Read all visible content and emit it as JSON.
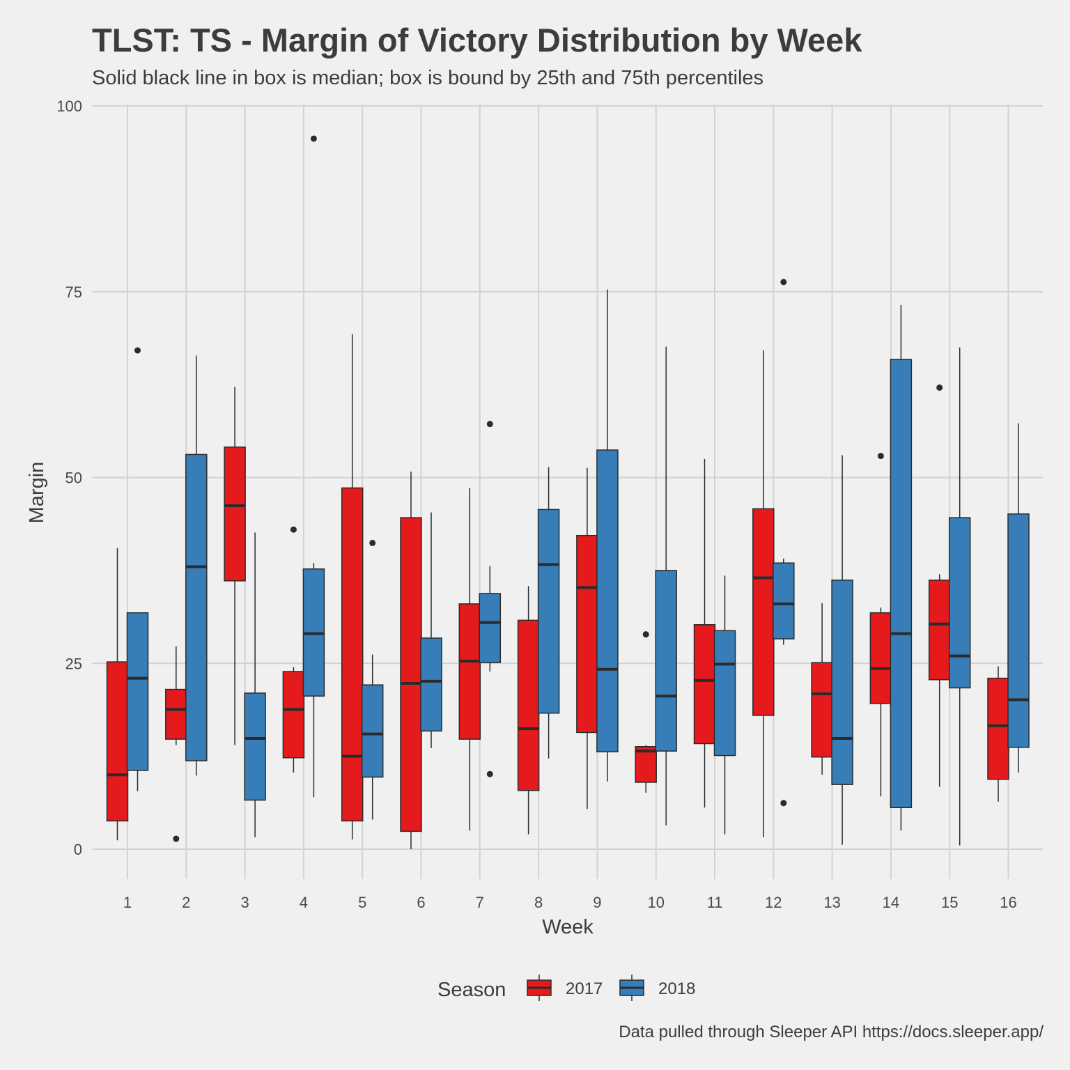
{
  "title": "TLST: TS - Margin of Victory Distribution by Week",
  "subtitle": "Solid black line in box is median; box is bound by 25th and 75th percentiles",
  "caption": "Data pulled through Sleeper API https://docs.sleeper.app/",
  "colors": {
    "2017": "#e41a1c",
    "2018": "#377eb8",
    "grid": "#d2d2d2",
    "background": "#f0f0f0",
    "outline": "#2b2b2b"
  },
  "chart_data": {
    "type": "boxplot",
    "title": "TLST: TS - Margin of Victory Distribution by Week",
    "subtitle": "Solid black line in box is median; box is bound by 25th and 75th percentiles",
    "xlabel": "Week",
    "ylabel": "Margin",
    "ylim": [
      -4,
      102
    ],
    "yticks": [
      0,
      25,
      50,
      75,
      100
    ],
    "categories": [
      "1",
      "2",
      "3",
      "4",
      "5",
      "6",
      "7",
      "8",
      "9",
      "10",
      "11",
      "12",
      "13",
      "14",
      "15",
      "16"
    ],
    "legend": {
      "title": "Season",
      "position": "bottom",
      "entries": [
        "2017",
        "2018"
      ]
    },
    "grid": true,
    "series": [
      {
        "name": "2017",
        "color": "#e41a1c",
        "boxes": [
          {
            "week": "1",
            "min": 1.2,
            "q1": 3.8,
            "median": 10,
            "q3": 25.2,
            "max": 40.5,
            "outliers": []
          },
          {
            "week": "2",
            "min": 14,
            "q1": 14.8,
            "median": 18.8,
            "q3": 21.5,
            "max": 27.3,
            "outliers": [
              1.4
            ]
          },
          {
            "week": "3",
            "min": 14,
            "q1": 36.1,
            "median": 46.2,
            "q3": 54.1,
            "max": 62.2,
            "outliers": []
          },
          {
            "week": "4",
            "min": 10.3,
            "q1": 12.3,
            "median": 18.8,
            "q3": 23.9,
            "max": 24.5,
            "outliers": [
              43
            ]
          },
          {
            "week": "5",
            "min": 1.3,
            "q1": 3.8,
            "median": 12.5,
            "q3": 48.6,
            "max": 69.3,
            "outliers": []
          },
          {
            "week": "6",
            "min": 0,
            "q1": 2.4,
            "median": 22.3,
            "q3": 44.6,
            "max": 50.8,
            "outliers": []
          },
          {
            "week": "7",
            "min": 2.5,
            "q1": 14.8,
            "median": 25.3,
            "q3": 33,
            "max": 48.6,
            "outliers": []
          },
          {
            "week": "8",
            "min": 2,
            "q1": 7.9,
            "median": 16.2,
            "q3": 30.8,
            "max": 35.4,
            "outliers": []
          },
          {
            "week": "9",
            "min": 5.4,
            "q1": 15.7,
            "median": 35.2,
            "q3": 42.2,
            "max": 51.3,
            "outliers": []
          },
          {
            "week": "10",
            "min": 7.6,
            "q1": 9,
            "median": 13.2,
            "q3": 13.8,
            "max": 14,
            "outliers": [
              28.9
            ]
          },
          {
            "week": "11",
            "min": 5.6,
            "q1": 14.2,
            "median": 22.7,
            "q3": 30.2,
            "max": 52.5,
            "outliers": []
          },
          {
            "week": "12",
            "min": 1.6,
            "q1": 18,
            "median": 36.5,
            "q3": 45.8,
            "max": 67.1,
            "outliers": []
          },
          {
            "week": "13",
            "min": 10,
            "q1": 12.4,
            "median": 20.9,
            "q3": 25.1,
            "max": 33.1,
            "outliers": []
          },
          {
            "week": "14",
            "min": 7.1,
            "q1": 19.6,
            "median": 24.3,
            "q3": 31.8,
            "max": 32.5,
            "outliers": [
              52.9
            ]
          },
          {
            "week": "15",
            "min": 8.4,
            "q1": 22.8,
            "median": 30.3,
            "q3": 36.2,
            "max": 37,
            "outliers": [
              62.1
            ]
          },
          {
            "week": "16",
            "min": 6.4,
            "q1": 9.4,
            "median": 16.6,
            "q3": 23,
            "max": 24.6,
            "outliers": []
          }
        ]
      },
      {
        "name": "2018",
        "color": "#377eb8",
        "boxes": [
          {
            "week": "1",
            "min": 7.8,
            "q1": 10.6,
            "median": 23,
            "q3": 31.8,
            "max": 31.8,
            "outliers": [
              67.1
            ]
          },
          {
            "week": "2",
            "min": 9.9,
            "q1": 11.9,
            "median": 38,
            "q3": 53.1,
            "max": 66.4,
            "outliers": []
          },
          {
            "week": "3",
            "min": 1.6,
            "q1": 6.6,
            "median": 14.9,
            "q3": 21,
            "max": 42.6,
            "outliers": []
          },
          {
            "week": "4",
            "min": 7,
            "q1": 20.6,
            "median": 29,
            "q3": 37.7,
            "max": 38.5,
            "outliers": [
              95.6
            ]
          },
          {
            "week": "5",
            "min": 4,
            "q1": 9.7,
            "median": 15.5,
            "q3": 22.1,
            "max": 26.2,
            "outliers": [
              41.2
            ]
          },
          {
            "week": "6",
            "min": 13.6,
            "q1": 15.9,
            "median": 22.6,
            "q3": 28.4,
            "max": 45.3,
            "outliers": []
          },
          {
            "week": "7",
            "min": 23.9,
            "q1": 25.1,
            "median": 30.5,
            "q3": 34.4,
            "max": 38.1,
            "outliers": [
              57.2,
              10.1
            ]
          },
          {
            "week": "8",
            "min": 12.2,
            "q1": 18.3,
            "median": 38.3,
            "q3": 45.7,
            "max": 51.4,
            "outliers": []
          },
          {
            "week": "9",
            "min": 9.1,
            "q1": 13.1,
            "median": 24.2,
            "q3": 53.7,
            "max": 75.3,
            "outliers": []
          },
          {
            "week": "10",
            "min": 3.2,
            "q1": 13.2,
            "median": 20.6,
            "q3": 37.5,
            "max": 67.6,
            "outliers": []
          },
          {
            "week": "11",
            "min": 2,
            "q1": 12.6,
            "median": 24.9,
            "q3": 29.4,
            "max": 36.8,
            "outliers": []
          },
          {
            "week": "12",
            "min": 27.5,
            "q1": 28.3,
            "median": 33,
            "q3": 38.5,
            "max": 39.1,
            "outliers": [
              76.3,
              6.2
            ]
          },
          {
            "week": "13",
            "min": 0.6,
            "q1": 8.7,
            "median": 14.9,
            "q3": 36.2,
            "max": 53,
            "outliers": []
          },
          {
            "week": "14",
            "min": 2.5,
            "q1": 5.6,
            "median": 29,
            "q3": 65.9,
            "max": 73.2,
            "outliers": []
          },
          {
            "week": "15",
            "min": 0.5,
            "q1": 21.7,
            "median": 26,
            "q3": 44.6,
            "max": 67.5,
            "outliers": []
          },
          {
            "week": "16",
            "min": 10.3,
            "q1": 13.7,
            "median": 20.1,
            "q3": 45.1,
            "max": 57.3,
            "outliers": []
          }
        ]
      }
    ]
  }
}
